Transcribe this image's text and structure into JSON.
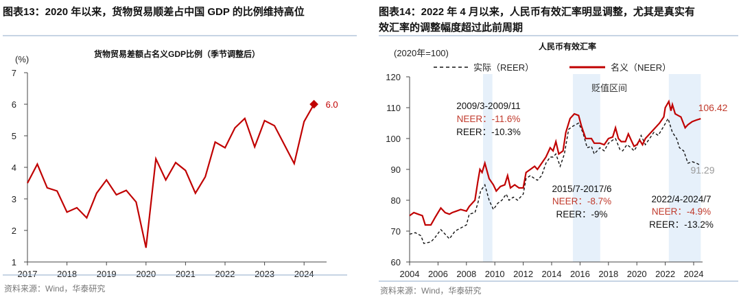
{
  "left": {
    "figure_title": "图表13：2020 年以来，货物贸易顺差占中国 GDP 的比例维持高位",
    "source": "资料来源：Wind，华泰研究"
  },
  "right": {
    "figure_title_line1": "图表14：2022 年 4 月以来，人民币有效汇率明显调整，尤其是真实有",
    "figure_title_line2": "效汇率的调整幅度超过此前周期",
    "source": "资料来源：Wind，华泰研究"
  },
  "colors": {
    "red": "#c00000",
    "black": "#111111",
    "shade": "#e6f0fa",
    "rule": "#8ea9c8"
  },
  "chart_data": [
    {
      "type": "line",
      "title": "货物贸易差额占名义GDP比例（季节调整后）",
      "ylabel": "(%)",
      "ylim": [
        1,
        7
      ],
      "yticks": [
        "1",
        "2",
        "3",
        "4",
        "5",
        "6",
        "7"
      ],
      "xticks": [
        "2017",
        "2018",
        "2019",
        "2020",
        "2021",
        "2022",
        "2023",
        "2024"
      ],
      "x_start": "2017Q1",
      "frequency": "quarterly",
      "values": [
        3.5,
        4.1,
        3.35,
        3.25,
        2.58,
        2.72,
        2.4,
        3.18,
        3.6,
        3.13,
        3.27,
        2.9,
        1.45,
        4.27,
        3.6,
        4.15,
        3.9,
        3.18,
        3.7,
        4.8,
        4.62,
        5.25,
        5.55,
        4.65,
        5.48,
        5.32,
        4.72,
        4.12,
        5.45,
        6.0
      ],
      "last_label": "6.0"
    },
    {
      "type": "line",
      "title": "人民币有效汇率",
      "ylabel": "(2020年=100)",
      "ylim": [
        60,
        120
      ],
      "xlim": [
        2004,
        2024.6
      ],
      "yticks": [
        "60",
        "70",
        "80",
        "90",
        "100",
        "110",
        "120"
      ],
      "xticks": [
        "2004",
        "2006",
        "2008",
        "2010",
        "2012",
        "2014",
        "2016",
        "2018",
        "2020",
        "2022",
        "2024"
      ],
      "shaded_label": "贬值区间",
      "shaded_periods": [
        [
          2009.17,
          2009.83
        ],
        [
          2015.5,
          2017.42
        ],
        [
          2022.25,
          2024.5
        ]
      ],
      "series": [
        {
          "name": "名义（NEER）",
          "style": "solid",
          "points": [
            [
              2004.0,
              75
            ],
            [
              2004.3,
              76
            ],
            [
              2004.6,
              75.5
            ],
            [
              2004.9,
              75
            ],
            [
              2005.1,
              72
            ],
            [
              2005.5,
              72
            ],
            [
              2005.8,
              74.5
            ],
            [
              2006.0,
              76
            ],
            [
              2006.2,
              77.5
            ],
            [
              2006.5,
              76
            ],
            [
              2006.8,
              75.5
            ],
            [
              2007.0,
              76
            ],
            [
              2007.3,
              76.5
            ],
            [
              2007.6,
              77
            ],
            [
              2008.0,
              76.5
            ],
            [
              2008.2,
              78
            ],
            [
              2008.6,
              80
            ],
            [
              2008.8,
              86
            ],
            [
              2008.95,
              90
            ],
            [
              2009.1,
              89
            ],
            [
              2009.3,
              92
            ],
            [
              2009.6,
              87
            ],
            [
              2009.9,
              85
            ],
            [
              2010.1,
              83
            ],
            [
              2010.4,
              84.5
            ],
            [
              2010.7,
              85
            ],
            [
              2010.9,
              88
            ],
            [
              2011.1,
              84
            ],
            [
              2011.4,
              85
            ],
            [
              2011.7,
              84
            ],
            [
              2012.0,
              84
            ],
            [
              2012.2,
              89
            ],
            [
              2012.5,
              90
            ],
            [
              2012.8,
              91
            ],
            [
              2013.0,
              90
            ],
            [
              2013.3,
              92
            ],
            [
              2013.6,
              94
            ],
            [
              2013.9,
              97
            ],
            [
              2014.1,
              96
            ],
            [
              2014.3,
              99
            ],
            [
              2014.5,
              95
            ],
            [
              2014.8,
              96
            ],
            [
              2015.0,
              102
            ],
            [
              2015.3,
              106.5
            ],
            [
              2015.6,
              108
            ],
            [
              2015.9,
              107.5
            ],
            [
              2016.1,
              104
            ],
            [
              2016.4,
              100
            ],
            [
              2016.8,
              100
            ],
            [
              2017.0,
              98.5
            ],
            [
              2017.4,
              98.5
            ],
            [
              2017.7,
              98
            ],
            [
              2018.0,
              100
            ],
            [
              2018.3,
              100.5
            ],
            [
              2018.5,
              103.5
            ],
            [
              2018.7,
              100
            ],
            [
              2018.9,
              99
            ],
            [
              2019.2,
              99
            ],
            [
              2019.4,
              101.5
            ],
            [
              2019.6,
              99.5
            ],
            [
              2019.8,
              97.5
            ],
            [
              2020.0,
              98
            ],
            [
              2020.2,
              99.5
            ],
            [
              2020.4,
              98
            ],
            [
              2020.6,
              100
            ],
            [
              2020.8,
              101
            ],
            [
              2021.0,
              102
            ],
            [
              2021.3,
              103.5
            ],
            [
              2021.6,
              105
            ],
            [
              2021.9,
              107
            ],
            [
              2022.0,
              110
            ],
            [
              2022.25,
              112
            ],
            [
              2022.4,
              109
            ],
            [
              2022.5,
              111
            ],
            [
              2022.7,
              108
            ],
            [
              2022.9,
              107.5
            ],
            [
              2023.1,
              107
            ],
            [
              2023.4,
              103.5
            ],
            [
              2023.6,
              104.5
            ],
            [
              2023.9,
              105.5
            ],
            [
              2024.2,
              106
            ],
            [
              2024.5,
              106.42
            ]
          ]
        },
        {
          "name": "实际（REER）",
          "style": "dashed",
          "points": [
            [
              2004.0,
              69
            ],
            [
              2004.4,
              69.5
            ],
            [
              2004.8,
              68.5
            ],
            [
              2005.0,
              66
            ],
            [
              2005.5,
              66.5
            ],
            [
              2005.8,
              68
            ],
            [
              2006.2,
              70.5
            ],
            [
              2006.5,
              69
            ],
            [
              2006.8,
              67.5
            ],
            [
              2007.2,
              70
            ],
            [
              2007.6,
              71
            ],
            [
              2008.0,
              72
            ],
            [
              2008.2,
              75.5
            ],
            [
              2008.6,
              76
            ],
            [
              2008.8,
              79
            ],
            [
              2009.0,
              83
            ],
            [
              2009.3,
              85
            ],
            [
              2009.6,
              80
            ],
            [
              2009.9,
              77
            ],
            [
              2010.2,
              79
            ],
            [
              2010.5,
              80
            ],
            [
              2010.8,
              82
            ],
            [
              2011.0,
              80
            ],
            [
              2011.3,
              81
            ],
            [
              2011.6,
              80
            ],
            [
              2012.0,
              82
            ],
            [
              2012.2,
              87
            ],
            [
              2012.5,
              88
            ],
            [
              2012.8,
              87
            ],
            [
              2013.0,
              86.5
            ],
            [
              2013.3,
              88
            ],
            [
              2013.6,
              92
            ],
            [
              2013.9,
              94
            ],
            [
              2014.1,
              94
            ],
            [
              2014.3,
              95
            ],
            [
              2014.6,
              91
            ],
            [
              2014.9,
              95
            ],
            [
              2015.2,
              103
            ],
            [
              2015.5,
              104
            ],
            [
              2015.9,
              105
            ],
            [
              2016.2,
              102
            ],
            [
              2016.5,
              97
            ],
            [
              2016.8,
              97.5
            ],
            [
              2017.0,
              95
            ],
            [
              2017.4,
              97
            ],
            [
              2017.7,
              96
            ],
            [
              2018.0,
              98.5
            ],
            [
              2018.3,
              99.5
            ],
            [
              2018.5,
              100
            ],
            [
              2018.8,
              96.5
            ],
            [
              2019.0,
              96
            ],
            [
              2019.3,
              98
            ],
            [
              2019.6,
              97
            ],
            [
              2019.8,
              96
            ],
            [
              2020.0,
              97.5
            ],
            [
              2020.3,
              101
            ],
            [
              2020.6,
              98
            ],
            [
              2020.9,
              100
            ],
            [
              2021.2,
              102
            ],
            [
              2021.5,
              101
            ],
            [
              2021.9,
              104
            ],
            [
              2022.2,
              106.5
            ],
            [
              2022.5,
              102
            ],
            [
              2022.8,
              100
            ],
            [
              2023.0,
              97
            ],
            [
              2023.3,
              96
            ],
            [
              2023.6,
              92
            ],
            [
              2023.9,
              92.5
            ],
            [
              2024.2,
              92
            ],
            [
              2024.5,
              91.29
            ]
          ]
        }
      ],
      "end_labels": {
        "neer": "106.42",
        "reer": "91.29"
      },
      "annotations": [
        {
          "period": "2009/3-2009/11",
          "neer": "NEER：-11.6%",
          "reer": "REER：-10.3%"
        },
        {
          "period": "2015/7-2017/6",
          "neer": "NEER：-8.7%",
          "reer": "REER：-9%"
        },
        {
          "period": "2022/4-2024/7",
          "neer": "NEER：-4.9%",
          "reer": "REER：-13.2%"
        }
      ]
    }
  ]
}
